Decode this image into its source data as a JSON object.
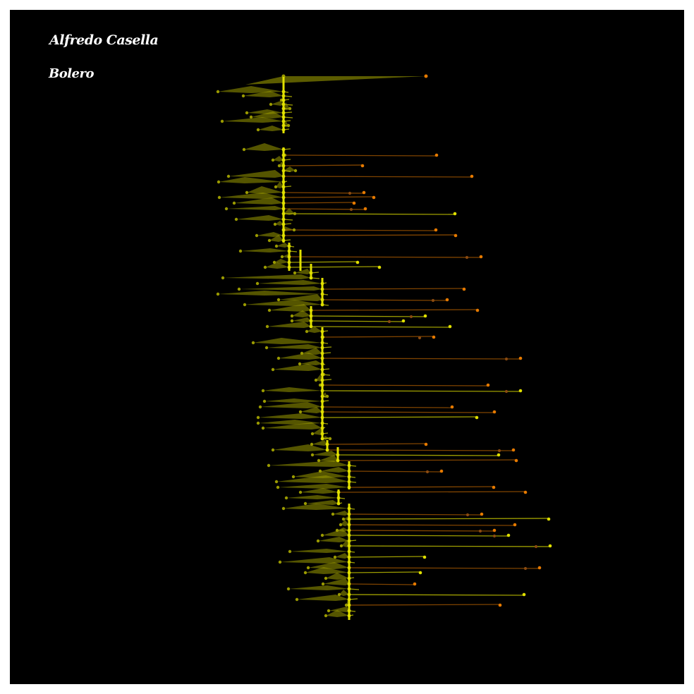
{
  "artwork": {
    "composer": "Alfredo Casella",
    "work": "Bolero"
  },
  "colors": {
    "background": "#000000",
    "frame": "#ffffff",
    "text": "#ffffff",
    "primary": "#e0e000",
    "dim": "#9a9a00",
    "accent": "#e67a00",
    "accent_dark": "#8a4a10"
  }
}
